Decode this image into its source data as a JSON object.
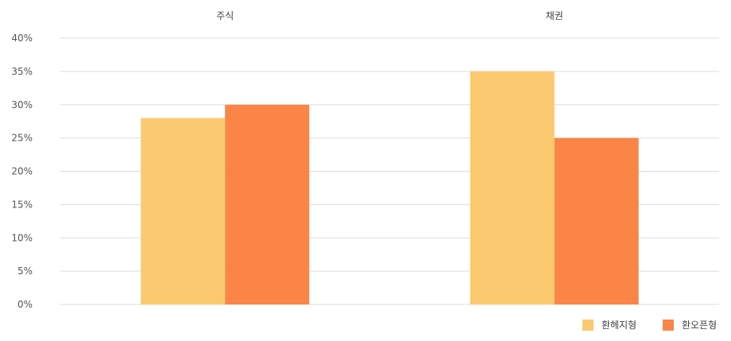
{
  "chart_data": {
    "type": "bar",
    "categories": [
      "주식",
      "채권"
    ],
    "category_label_position": "top",
    "series": [
      {
        "name": "환헤지형",
        "values": [
          28,
          35
        ],
        "color": "#FBC96F"
      },
      {
        "name": "환오픈형",
        "values": [
          30,
          25
        ],
        "color": "#FA8546"
      }
    ],
    "ylim": [
      0,
      40
    ],
    "yticks": [
      0,
      5,
      10,
      15,
      20,
      25,
      30,
      35,
      40
    ],
    "ytick_labels": [
      "0%",
      "5%",
      "10%",
      "15%",
      "20%",
      "25%",
      "30%",
      "35%",
      "40%"
    ],
    "grid": true,
    "legend_position": "bottom-right",
    "title": "",
    "xlabel": "",
    "ylabel": ""
  }
}
